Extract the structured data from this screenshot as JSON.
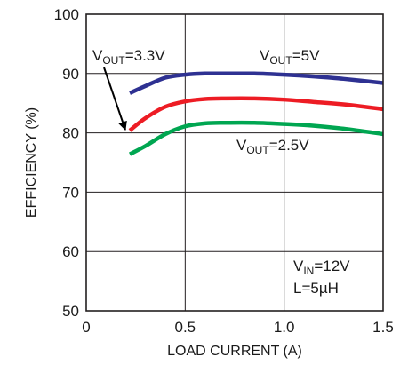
{
  "chart_data": {
    "type": "line",
    "title": "",
    "xlabel": "LOAD CURRENT (A)",
    "ylabel": "EFFICIENCY (%)",
    "xlim": [
      0,
      1.5
    ],
    "ylim": [
      50,
      100
    ],
    "xticks": [
      0,
      0.5,
      1.0,
      1.5
    ],
    "xtick_labels": [
      "0",
      "0.5",
      "1.0",
      "1.5"
    ],
    "yticks": [
      50,
      60,
      70,
      80,
      90,
      100
    ],
    "ytick_labels": [
      "50",
      "60",
      "70",
      "80",
      "90",
      "100"
    ],
    "grid": true,
    "series": [
      {
        "name": "VOUT=5V",
        "color": "#2e3192",
        "x": [
          0.22,
          0.3,
          0.4,
          0.5,
          0.6,
          0.7,
          0.85,
          1.0,
          1.15,
          1.3,
          1.5
        ],
        "y": [
          86.7,
          87.9,
          89.3,
          89.8,
          90.0,
          90.0,
          90.0,
          89.8,
          89.5,
          89.1,
          88.4
        ]
      },
      {
        "name": "VOUT=3.3V",
        "color": "#ed1c24",
        "x": [
          0.22,
          0.3,
          0.4,
          0.5,
          0.6,
          0.7,
          0.85,
          1.0,
          1.15,
          1.3,
          1.5
        ],
        "y": [
          80.4,
          82.5,
          84.4,
          85.3,
          85.7,
          85.8,
          85.8,
          85.6,
          85.2,
          84.8,
          84.0
        ]
      },
      {
        "name": "VOUT=2.5V",
        "color": "#00a651",
        "x": [
          0.22,
          0.3,
          0.4,
          0.5,
          0.6,
          0.7,
          0.85,
          1.0,
          1.15,
          1.3,
          1.5
        ],
        "y": [
          76.4,
          77.8,
          79.8,
          81.1,
          81.6,
          81.7,
          81.7,
          81.5,
          81.2,
          80.7,
          79.8
        ]
      }
    ],
    "annotations": {
      "vout_5v": {
        "main": "V",
        "sub": "OUT",
        "tail": "=5V"
      },
      "vout_3v3": {
        "main": "V",
        "sub": "OUT",
        "tail": "=3.3V"
      },
      "vout_2v5": {
        "main": "V",
        "sub": "OUT",
        "tail": "=2.5V"
      },
      "vin": {
        "main": "V",
        "sub": "IN",
        "tail": "=12V"
      },
      "inductor": {
        "text": "L=5µH"
      }
    }
  }
}
